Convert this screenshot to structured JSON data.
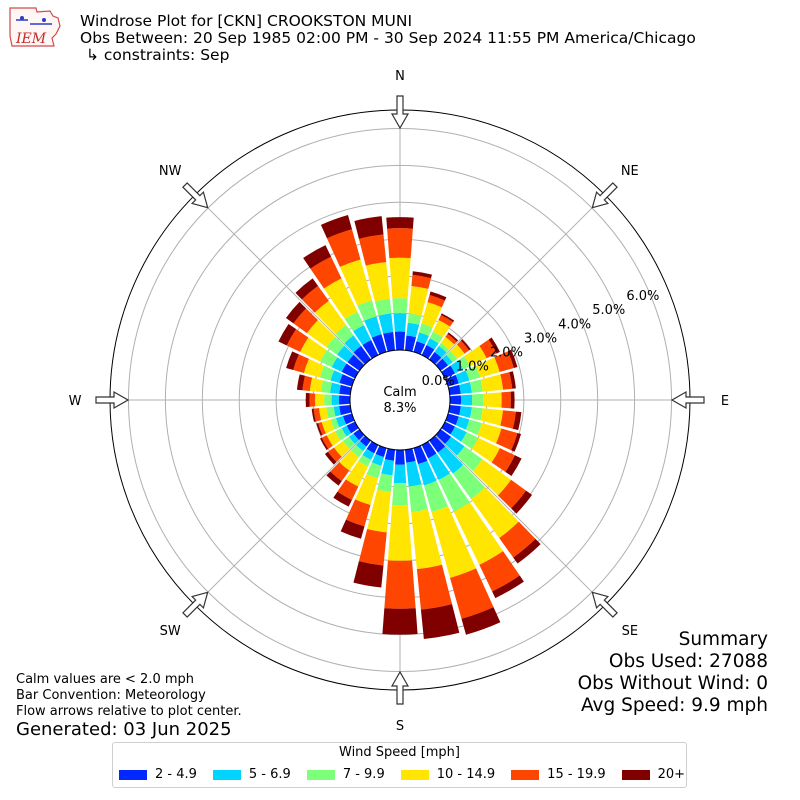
{
  "header": {
    "title": "Windrose Plot for [CKN] CROOKSTON MUNI",
    "obs_between": "Obs Between: 20 Sep 1985 02:00 PM - 30 Sep 2024 11:55 PM America/Chicago",
    "constraints": "↳ constraints: Sep"
  },
  "logo": {
    "text": "IEM"
  },
  "notes": [
    "Calm values are < 2.0 mph",
    "Bar Convention: Meteorology",
    "Flow arrows relative to plot center."
  ],
  "generated": "Generated: 03 Jun 2025",
  "summary": {
    "title": "Summary",
    "obs_used": "Obs Used: 27088",
    "obs_without_wind": "Obs Without Wind: 0",
    "avg_speed": "Avg Speed: 9.9 mph"
  },
  "colors": {
    "bins": [
      "#0028ff",
      "#00d4ff",
      "#7cff79",
      "#ffe500",
      "#ff4600",
      "#800000"
    ]
  },
  "chart_data": {
    "type": "windrose",
    "center_label": "Calm",
    "calm_percent": "8.3%",
    "radial_ticks": [
      "0.0%",
      "1.0%",
      "2.0%",
      "3.0%",
      "4.0%",
      "5.0%",
      "6.0%"
    ],
    "radial_range": [
      0,
      6.5
    ],
    "compass_labels": [
      "N",
      "NE",
      "E",
      "SE",
      "S",
      "SW",
      "W",
      "NW"
    ],
    "legend_title": "Wind Speed [mph]",
    "speed_bins": [
      "2 - 4.9",
      "5 - 6.9",
      "7 - 9.9",
      "10 - 14.9",
      "15 - 19.9",
      "20+"
    ],
    "directions_deg": [
      0,
      10,
      20,
      30,
      40,
      50,
      60,
      70,
      80,
      90,
      100,
      110,
      120,
      130,
      140,
      150,
      160,
      170,
      180,
      190,
      200,
      210,
      220,
      230,
      240,
      250,
      260,
      270,
      280,
      290,
      300,
      310,
      320,
      330,
      340,
      350
    ],
    "cumulative_percent": [
      [
        0.5,
        1.0,
        1.4,
        2.5,
        3.3,
        3.6
      ],
      [
        0.4,
        0.75,
        1.0,
        1.75,
        2.05,
        2.15
      ],
      [
        0.3,
        0.55,
        0.8,
        1.4,
        1.6,
        1.7
      ],
      [
        0.3,
        0.5,
        0.7,
        1.05,
        1.2,
        1.25
      ],
      [
        0.25,
        0.45,
        0.55,
        0.75,
        0.85,
        0.9
      ],
      [
        0.25,
        0.4,
        0.55,
        0.8,
        0.95,
        1.0
      ],
      [
        0.3,
        0.55,
        0.75,
        1.25,
        1.55,
        1.65
      ],
      [
        0.3,
        0.6,
        0.9,
        1.45,
        1.85,
        1.95
      ],
      [
        0.3,
        0.6,
        0.9,
        1.45,
        1.7,
        1.8
      ],
      [
        0.3,
        0.6,
        0.9,
        1.4,
        1.65,
        1.75
      ],
      [
        0.3,
        0.6,
        0.9,
        1.45,
        1.8,
        1.95
      ],
      [
        0.3,
        0.6,
        0.95,
        1.5,
        1.95,
        2.05
      ],
      [
        0.3,
        0.65,
        1.0,
        1.65,
        2.1,
        2.3
      ],
      [
        0.35,
        0.8,
        1.4,
        2.35,
        2.85,
        3.05
      ],
      [
        0.4,
        1.1,
        1.95,
        3.25,
        3.9,
        4.1
      ],
      [
        0.4,
        1.05,
        2.0,
        3.6,
        4.4,
        4.6
      ],
      [
        0.45,
        1.05,
        1.8,
        3.65,
        4.8,
        5.25
      ],
      [
        0.35,
        1.0,
        1.7,
        3.25,
        4.35,
        5.15
      ],
      [
        0.4,
        0.9,
        1.5,
        3.0,
        4.3,
        5.0
      ],
      [
        0.3,
        0.7,
        1.15,
        2.25,
        3.15,
        3.75
      ],
      [
        0.25,
        0.5,
        0.85,
        1.6,
        2.2,
        2.55
      ],
      [
        0.25,
        0.45,
        0.65,
        1.25,
        1.65,
        1.85
      ],
      [
        0.2,
        0.35,
        0.55,
        1.0,
        1.35,
        1.5
      ],
      [
        0.2,
        0.35,
        0.55,
        0.85,
        1.05,
        1.15
      ],
      [
        0.25,
        0.4,
        0.6,
        0.85,
        1.0,
        1.05
      ],
      [
        0.25,
        0.45,
        0.6,
        0.85,
        0.95,
        1.0
      ],
      [
        0.3,
        0.45,
        0.65,
        0.85,
        1.0,
        1.05
      ],
      [
        0.3,
        0.5,
        0.7,
        0.95,
        1.1,
        1.2
      ],
      [
        0.3,
        0.55,
        0.8,
        1.1,
        1.3,
        1.45
      ],
      [
        0.35,
        0.6,
        0.9,
        1.35,
        1.65,
        1.85
      ],
      [
        0.4,
        0.7,
        1.05,
        1.65,
        2.05,
        2.3
      ],
      [
        0.4,
        0.75,
        1.1,
        1.75,
        2.2,
        2.45
      ],
      [
        0.45,
        0.8,
        1.15,
        1.95,
        2.45,
        2.7
      ],
      [
        0.45,
        0.9,
        1.3,
        2.3,
        2.95,
        3.3
      ],
      [
        0.5,
        1.0,
        1.45,
        2.6,
        3.45,
        3.85
      ],
      [
        0.5,
        1.0,
        1.4,
        2.4,
        3.15,
        3.65
      ]
    ]
  }
}
